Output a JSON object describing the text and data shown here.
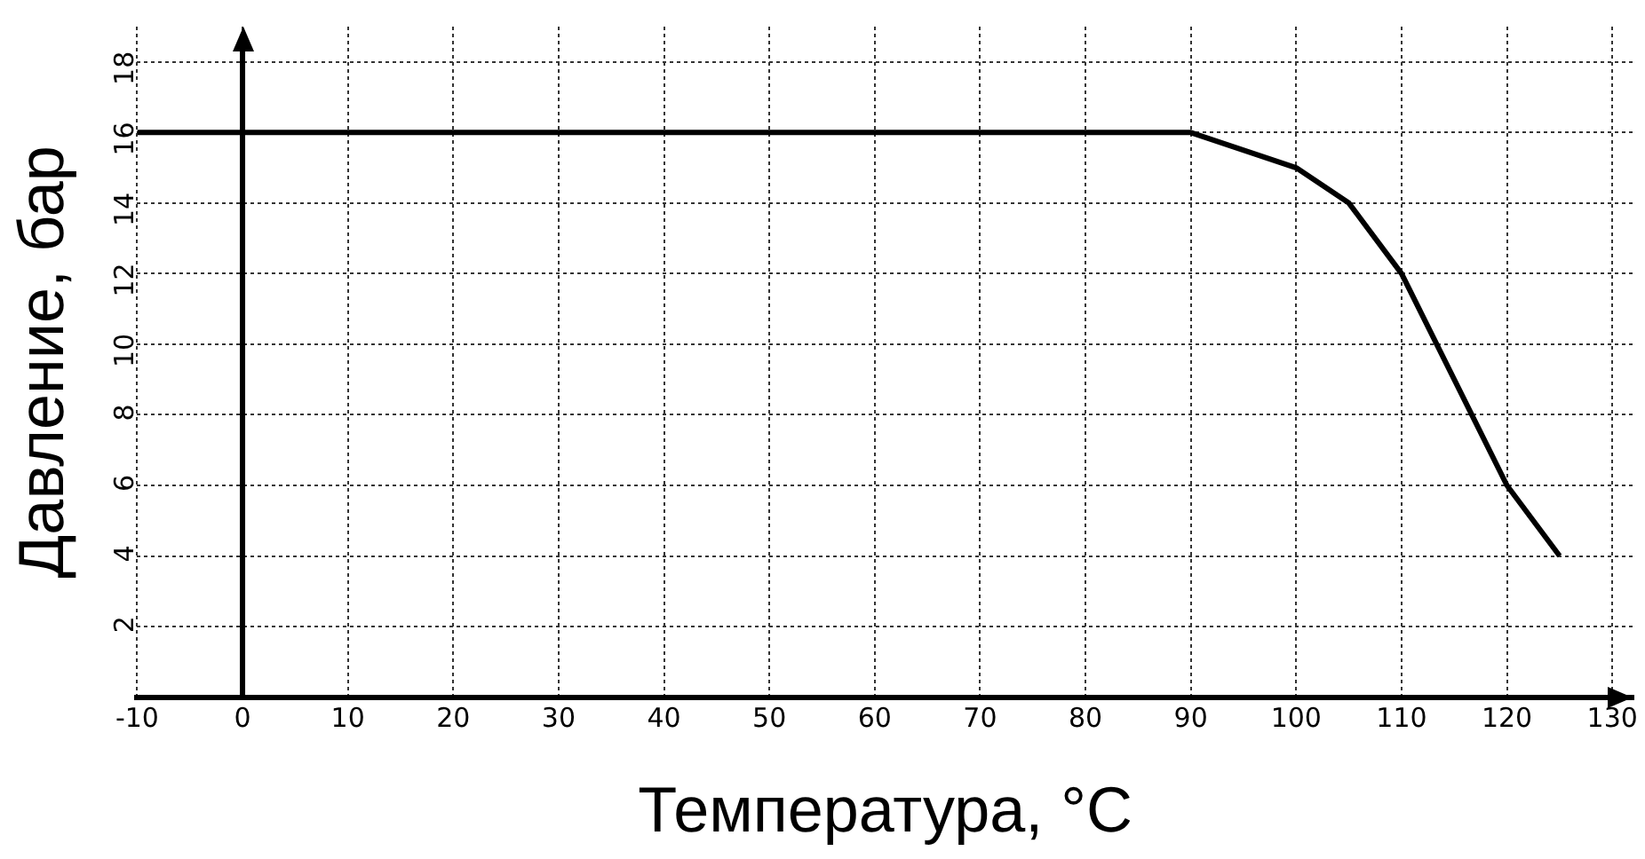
{
  "chart_data": {
    "type": "line",
    "xlabel": "Температура, °C",
    "ylabel": "Давление, бар",
    "x": [
      -10,
      90,
      100,
      105,
      110,
      120,
      125
    ],
    "series": [
      {
        "color": "#000000",
        "values": [
          16,
          16,
          15,
          14,
          12,
          6,
          4
        ]
      }
    ],
    "xlim": [
      -10,
      132
    ],
    "xticks": [
      -10,
      0,
      10,
      20,
      30,
      40,
      50,
      60,
      70,
      80,
      90,
      100,
      110,
      120,
      130
    ],
    "ylim": [
      0,
      19
    ],
    "yticks": [
      2,
      4,
      6,
      8,
      10,
      12,
      14,
      16,
      18
    ],
    "grid": true,
    "legend": false,
    "marker": "none",
    "line_style": "solid"
  }
}
